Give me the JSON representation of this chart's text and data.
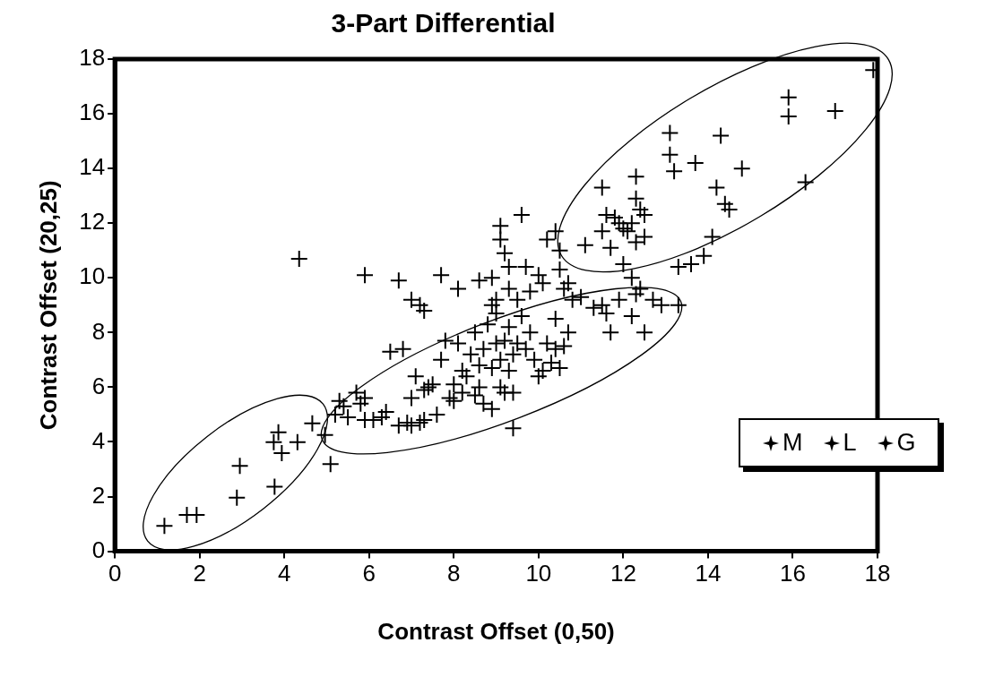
{
  "chart_data": {
    "type": "scatter",
    "title": "3-Part Differential",
    "xlabel": "Contrast Offset (0,50)",
    "ylabel": "Contrast Offset (20,25)",
    "xlim": [
      0,
      18
    ],
    "xticks": [
      0,
      2,
      4,
      6,
      8,
      10,
      12,
      14,
      16,
      18
    ],
    "ylim": [
      0,
      18
    ],
    "yticks": [
      0,
      2,
      4,
      6,
      8,
      10,
      12,
      14,
      16,
      18
    ],
    "grid": false,
    "legend": "right",
    "marker": "cross",
    "series": [
      {
        "name": "M",
        "color": "#000000",
        "x": [
          5.2,
          5.3,
          5.4,
          5.5,
          5.7,
          5.8,
          5.9,
          5.9,
          6.1,
          6.3,
          6.4,
          6.5,
          6.7,
          6.8,
          6.9,
          7.0,
          7.0,
          7.1,
          7.2,
          7.3,
          7.3,
          7.4,
          7.5,
          7.6,
          7.7,
          7.8,
          7.9,
          8.0,
          8.0,
          8.1,
          8.2,
          8.2,
          8.3,
          8.4,
          8.5,
          8.5,
          8.6,
          8.6,
          8.7,
          8.7,
          8.8,
          8.9,
          8.9,
          9.0,
          9.0,
          9.1,
          9.1,
          9.2,
          9.2,
          9.3,
          9.3,
          9.4,
          9.4,
          9.4,
          9.5,
          9.6,
          9.7,
          9.8,
          9.9,
          10.0,
          10.1,
          10.2,
          10.3,
          10.4,
          10.4,
          10.5,
          10.6,
          10.7,
          10.8,
          11.0,
          11.3,
          11.5,
          11.6,
          11.7,
          11.9,
          12.2,
          12.4,
          12.5,
          12.7,
          12.9,
          13.3,
          12.3,
          5.9,
          6.7,
          7.0,
          7.2,
          7.3,
          7.7,
          8.1,
          8.6,
          8.9,
          9.0,
          9.1,
          9.1,
          9.2,
          9.3,
          9.5,
          9.6,
          9.7,
          9.8,
          10.0,
          10.2,
          10.4,
          10.5,
          10.5,
          10.6,
          10.7,
          10.1,
          8.9,
          9.3,
          4.35
        ],
        "values": [
          5.0,
          5.5,
          5.3,
          4.9,
          5.8,
          5.4,
          4.8,
          5.6,
          4.8,
          4.9,
          5.1,
          7.3,
          4.6,
          7.4,
          4.7,
          5.6,
          4.6,
          6.4,
          4.7,
          4.8,
          5.9,
          6.0,
          6.1,
          5.0,
          7.0,
          7.7,
          5.6,
          5.5,
          6.1,
          7.6,
          5.8,
          6.6,
          6.4,
          7.2,
          5.7,
          8.0,
          6.8,
          6.0,
          7.4,
          5.4,
          8.3,
          6.7,
          5.2,
          7.6,
          8.7,
          6.0,
          7.0,
          7.7,
          5.8,
          6.6,
          8.2,
          7.2,
          5.8,
          4.5,
          7.6,
          8.6,
          7.4,
          8.0,
          7.0,
          6.4,
          6.6,
          7.6,
          6.9,
          7.4,
          8.5,
          6.7,
          7.5,
          8.0,
          9.2,
          9.3,
          8.9,
          9.0,
          8.7,
          8.0,
          9.2,
          8.6,
          9.6,
          8.0,
          9.2,
          9.0,
          9.0,
          9.4,
          10.1,
          9.9,
          9.2,
          9.0,
          8.8,
          10.1,
          9.6,
          9.9,
          10.0,
          9.2,
          11.9,
          11.4,
          10.9,
          10.4,
          9.2,
          12.3,
          10.4,
          9.5,
          10.1,
          11.4,
          11.7,
          11.0,
          10.3,
          9.6,
          9.8,
          9.8,
          9.0,
          9.6,
          10.7
        ]
      },
      {
        "name": "L",
        "color": "#000000",
        "x": [
          1.17,
          1.7,
          1.93,
          2.88,
          2.95,
          3.77,
          3.86,
          3.75,
          4.31,
          3.94,
          4.66,
          4.96,
          5.09
        ],
        "values": [
          0.93,
          1.33,
          1.33,
          1.96,
          3.12,
          2.36,
          4.35,
          3.99,
          3.99,
          3.59,
          4.68,
          4.25,
          3.19
        ]
      },
      {
        "name": "G",
        "color": "#000000",
        "x": [
          11.1,
          11.5,
          11.5,
          11.6,
          11.7,
          11.8,
          11.9,
          12.0,
          12.0,
          12.1,
          12.2,
          12.3,
          12.3,
          12.3,
          12.4,
          12.5,
          12.5,
          12.2,
          13.1,
          13.1,
          13.2,
          13.3,
          13.6,
          13.7,
          13.9,
          14.1,
          14.2,
          14.3,
          14.4,
          14.5,
          14.8,
          15.9,
          15.9,
          16.3,
          17.0,
          17.9
        ],
        "values": [
          11.2,
          13.3,
          11.7,
          12.3,
          11.1,
          12.2,
          12.0,
          10.5,
          11.8,
          11.7,
          12.0,
          13.7,
          12.9,
          11.3,
          12.5,
          11.5,
          12.3,
          10.0,
          15.3,
          14.5,
          13.9,
          10.4,
          10.5,
          14.2,
          10.8,
          11.5,
          13.3,
          15.2,
          12.7,
          12.5,
          14.0,
          16.6,
          15.9,
          13.5,
          16.1,
          17.6
        ]
      }
    ]
  }
}
